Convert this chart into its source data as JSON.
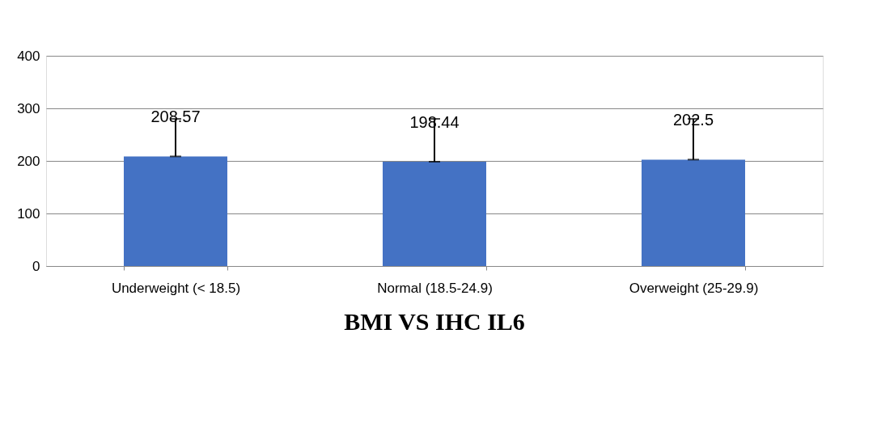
{
  "chart_data": {
    "type": "bar",
    "title": "BMI VS IHC IL6",
    "categories": [
      "Underweight (< 18.5)",
      "Normal (18.5-24.9)",
      "Overweight (25-29.9)"
    ],
    "values": [
      208.57,
      198.44,
      202.5
    ],
    "color": "#4472c4",
    "errors": [
      [
        208.57,
        280
      ],
      [
        198.44,
        280
      ],
      [
        202.5,
        280
      ]
    ],
    "data_labels": true,
    "ylim": [
      0,
      400
    ],
    "yticks": [
      0,
      100,
      200,
      300,
      400
    ],
    "grid": "y"
  }
}
